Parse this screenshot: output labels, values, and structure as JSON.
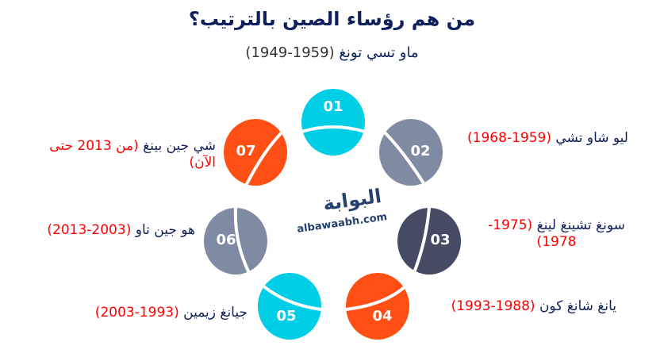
{
  "title": "من هم رؤساء الصين بالترتيب؟",
  "subtitle": {
    "name": "ماو تسي تونغ",
    "years": "(1959-1949)"
  },
  "colors": {
    "cyan": "#00cde6",
    "grey": "#7f8aa3",
    "dark": "#474a63",
    "orange": "#ff4f14",
    "navy": "#0f1f5c",
    "red": "#ff0000"
  },
  "items": [
    {
      "num": "01",
      "color": "#00cde6"
    },
    {
      "num": "02",
      "color": "#7f8aa3",
      "name": "ليو شاو تشي",
      "years": "(1959-1968)"
    },
    {
      "num": "03",
      "color": "#474a63",
      "name": "سونغ تشينغ لينغ",
      "years": "(1975-1978)"
    },
    {
      "num": "04",
      "color": "#ff4f14",
      "name": "يانغ شانغ كون",
      "years": "(1988-1993)"
    },
    {
      "num": "05",
      "color": "#00cde6",
      "name": "جيانغ زيمين",
      "years": "(1993-2003)"
    },
    {
      "num": "06",
      "color": "#7f8aa3",
      "name": "هو جين تاو",
      "years": "(2003-2013)"
    },
    {
      "num": "07",
      "color": "#ff4f14",
      "name": "شي جين بينغ",
      "years": "(من 2013 حتى الآن)"
    }
  ],
  "logo": {
    "arabic": "البوابة",
    "latin": "albawaabh.com"
  }
}
